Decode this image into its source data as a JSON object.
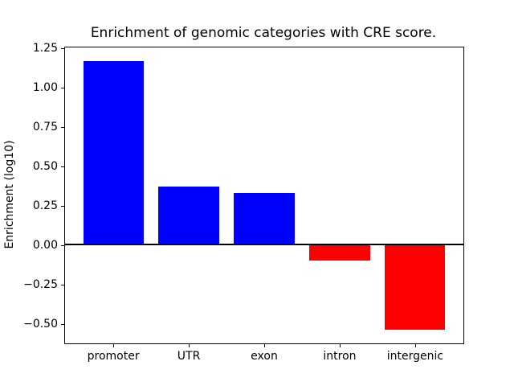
{
  "chart_data": {
    "type": "bar",
    "title": "Enrichment of genomic categories with CRE score.",
    "xlabel": "",
    "ylabel": "Enrichment (log10)",
    "categories": [
      "promoter",
      "UTR",
      "exon",
      "intron",
      "intergenic"
    ],
    "values": [
      1.17,
      0.37,
      0.33,
      -0.1,
      -0.54
    ],
    "bar_colors": [
      "#0000ff",
      "#0000ff",
      "#0000ff",
      "#ff0000",
      "#ff0000"
    ],
    "positive_color": "#0000ff",
    "negative_color": "#ff0000",
    "yticks": [
      1.25,
      1.0,
      0.75,
      0.5,
      0.25,
      0.0,
      -0.25,
      -0.5
    ],
    "ytick_labels": [
      "1.25",
      "1.00",
      "0.75",
      "0.50",
      "0.25",
      "0.00",
      "−0.25",
      "−0.50"
    ],
    "ylim": [
      -0.625,
      1.255
    ],
    "xlim": [
      -0.64,
      4.64
    ],
    "bar_width_fraction": 0.8,
    "zero_line": true,
    "grid": false,
    "legend": null,
    "axis_color": "#000000",
    "background_color": "#ffffff"
  }
}
